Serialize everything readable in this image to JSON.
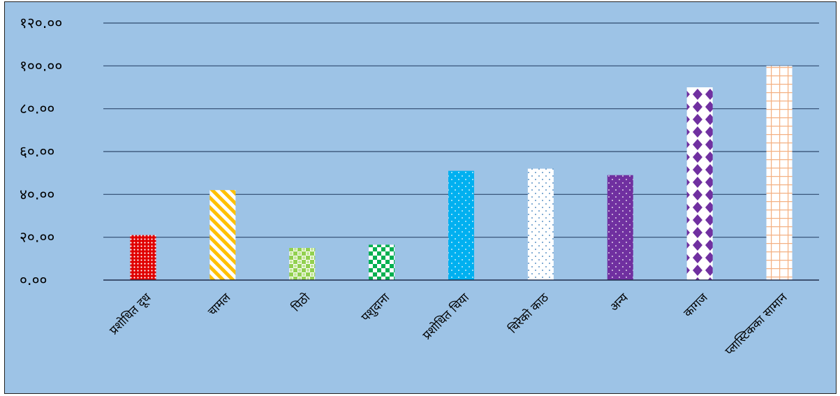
{
  "chart_data": {
    "type": "bar",
    "ylim": [
      0,
      120
    ],
    "y_ticks": [
      0,
      20,
      40,
      60,
      80,
      100,
      120
    ],
    "y_tick_labels": [
      "०.००",
      "२०.००",
      "४०.००",
      "६०.००",
      "८०.००",
      "१००.००",
      "१२०.००"
    ],
    "grid": true,
    "categories": [
      "प्रशोधित दूध",
      "चामल",
      "पिठो",
      "पशुदाना",
      "प्रशोधित चिया",
      "चिरेको काठ",
      "अन्य",
      "कागज",
      "प्लास्टिकका सामान"
    ],
    "values": [
      21,
      42,
      15,
      16.5,
      51,
      52,
      49,
      90,
      100
    ],
    "colors": [
      "#e00000",
      "#ffc000",
      "#92d050",
      "#00b050",
      "#00b0f0",
      "#ffffff",
      "#7030a0",
      "#7030a0",
      "#ffffff"
    ],
    "patterns": [
      "small-dots",
      "diagonal-stripes",
      "checker-small",
      "checker",
      "dots",
      "dots-blue",
      "dots-white",
      "diamonds",
      "grid-orange"
    ]
  }
}
